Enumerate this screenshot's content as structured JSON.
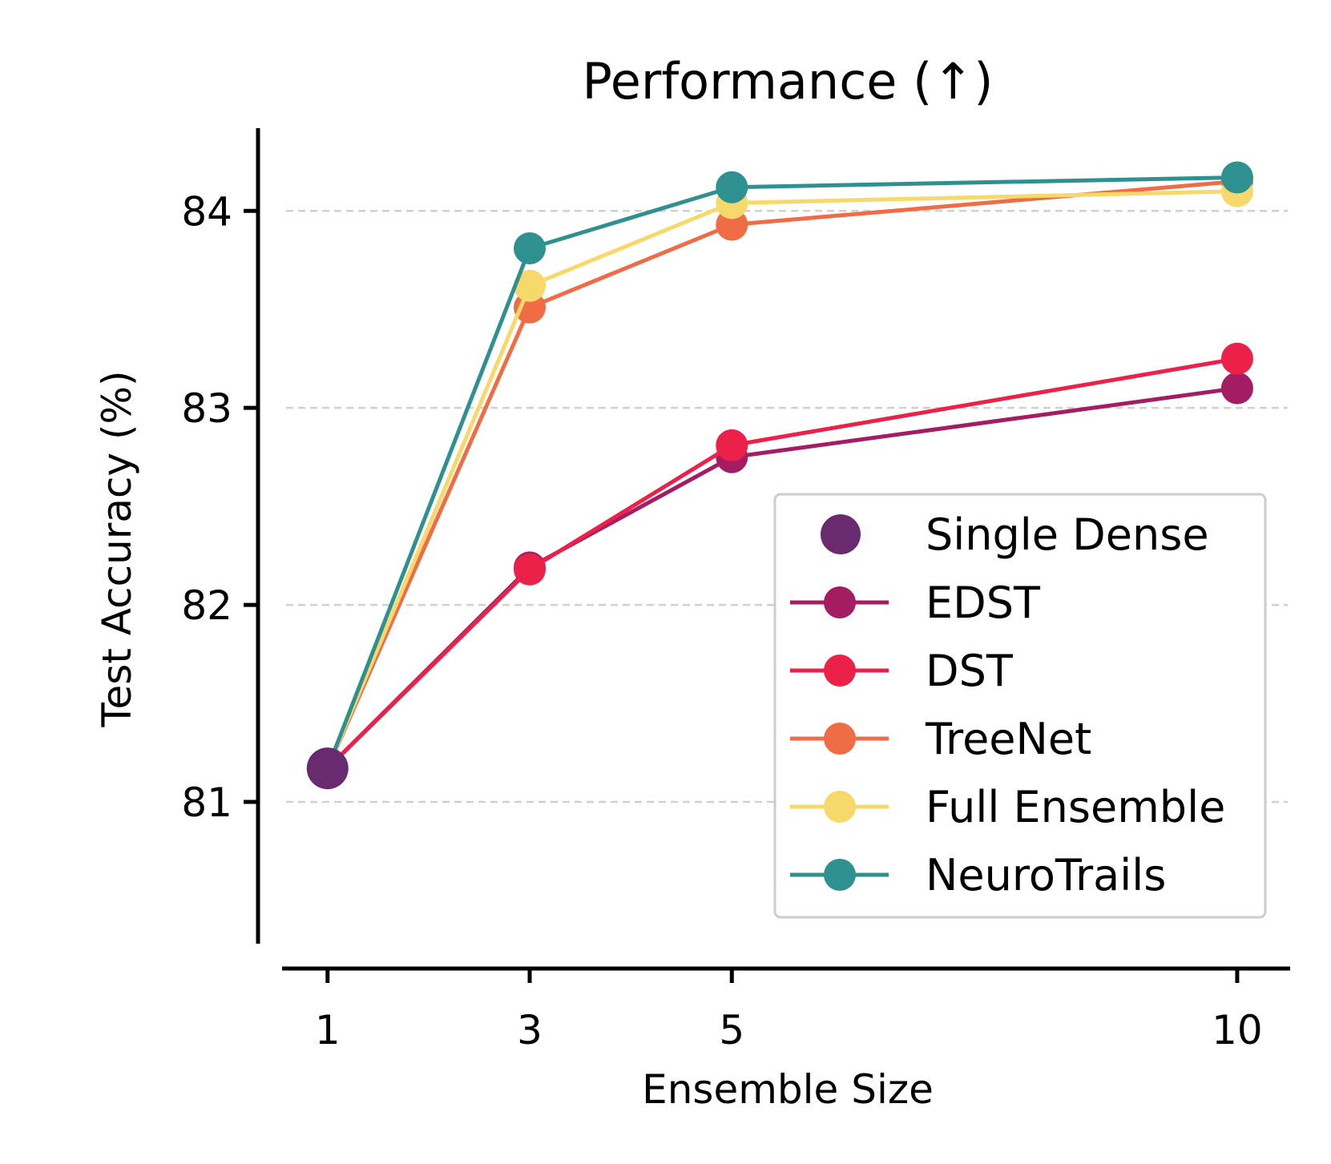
{
  "chart_data": {
    "type": "line",
    "title": "Performance (↑)",
    "xlabel": "Ensemble Size",
    "ylabel": "Test Accuracy (%)",
    "x": [
      1,
      3,
      5,
      10
    ],
    "x_tick_labels": [
      "1",
      "3",
      "5",
      "10"
    ],
    "y_ticks": [
      81,
      82,
      83,
      84
    ],
    "y_tick_labels": [
      "81",
      "82",
      "83",
      "84"
    ],
    "xlim": [
      0.55,
      10.5
    ],
    "ylim": [
      80.28,
      84.42
    ],
    "grid": "horizontal dashed",
    "legend_position": "lower-right",
    "series": [
      {
        "name": "Single Dense",
        "color": "#6a2a70",
        "marker_only": true,
        "x": [
          1
        ],
        "values": [
          81.17
        ]
      },
      {
        "name": "EDST",
        "color": "#a41c63",
        "x": [
          1,
          3,
          5,
          10
        ],
        "values": [
          81.17,
          82.19,
          82.75,
          83.1
        ]
      },
      {
        "name": "DST",
        "color": "#ec2149",
        "x": [
          1,
          3,
          5,
          10
        ],
        "values": [
          81.17,
          82.18,
          82.81,
          83.25
        ]
      },
      {
        "name": "TreeNet",
        "color": "#f06c44",
        "x": [
          1,
          3,
          5,
          10
        ],
        "values": [
          81.17,
          83.51,
          83.93,
          84.15
        ]
      },
      {
        "name": "Full Ensemble",
        "color": "#f7d86b",
        "x": [
          1,
          3,
          5,
          10
        ],
        "values": [
          81.17,
          83.62,
          84.04,
          84.1
        ]
      },
      {
        "name": "NeuroTrails",
        "color": "#2e9190",
        "x": [
          1,
          3,
          5,
          10
        ],
        "values": [
          81.17,
          83.81,
          84.12,
          84.17
        ]
      }
    ]
  }
}
